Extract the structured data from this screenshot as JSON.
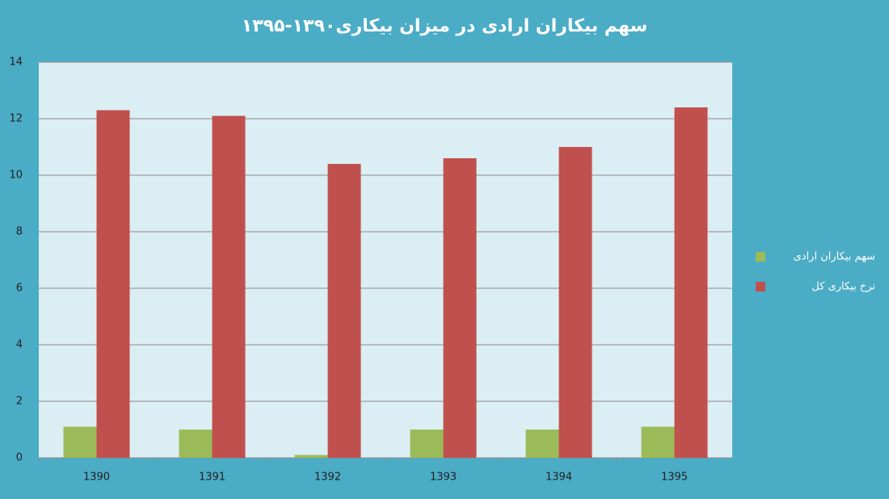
{
  "chart_data": {
    "type": "bar",
    "title": "سهم بیکاران ارادی در میزان بیکاری۱۳۹۰-۱۳۹۵",
    "categories": [
      "1390",
      "1391",
      "1392",
      "1393",
      "1394",
      "1395"
    ],
    "series": [
      {
        "name": "سهم بیکاران ارادی",
        "color": "#9bbb59",
        "values": [
          1.1,
          1.0,
          0.1,
          1.0,
          1.0,
          1.1
        ]
      },
      {
        "name": "نرخ بیکاری کل",
        "color": "#c0504d",
        "values": [
          12.3,
          12.1,
          10.4,
          10.6,
          11.0,
          12.4
        ]
      }
    ],
    "ylim": [
      0,
      14
    ],
    "yticks": [
      0,
      2,
      4,
      6,
      8,
      10,
      12,
      14
    ],
    "grid": true,
    "legend": "right"
  }
}
